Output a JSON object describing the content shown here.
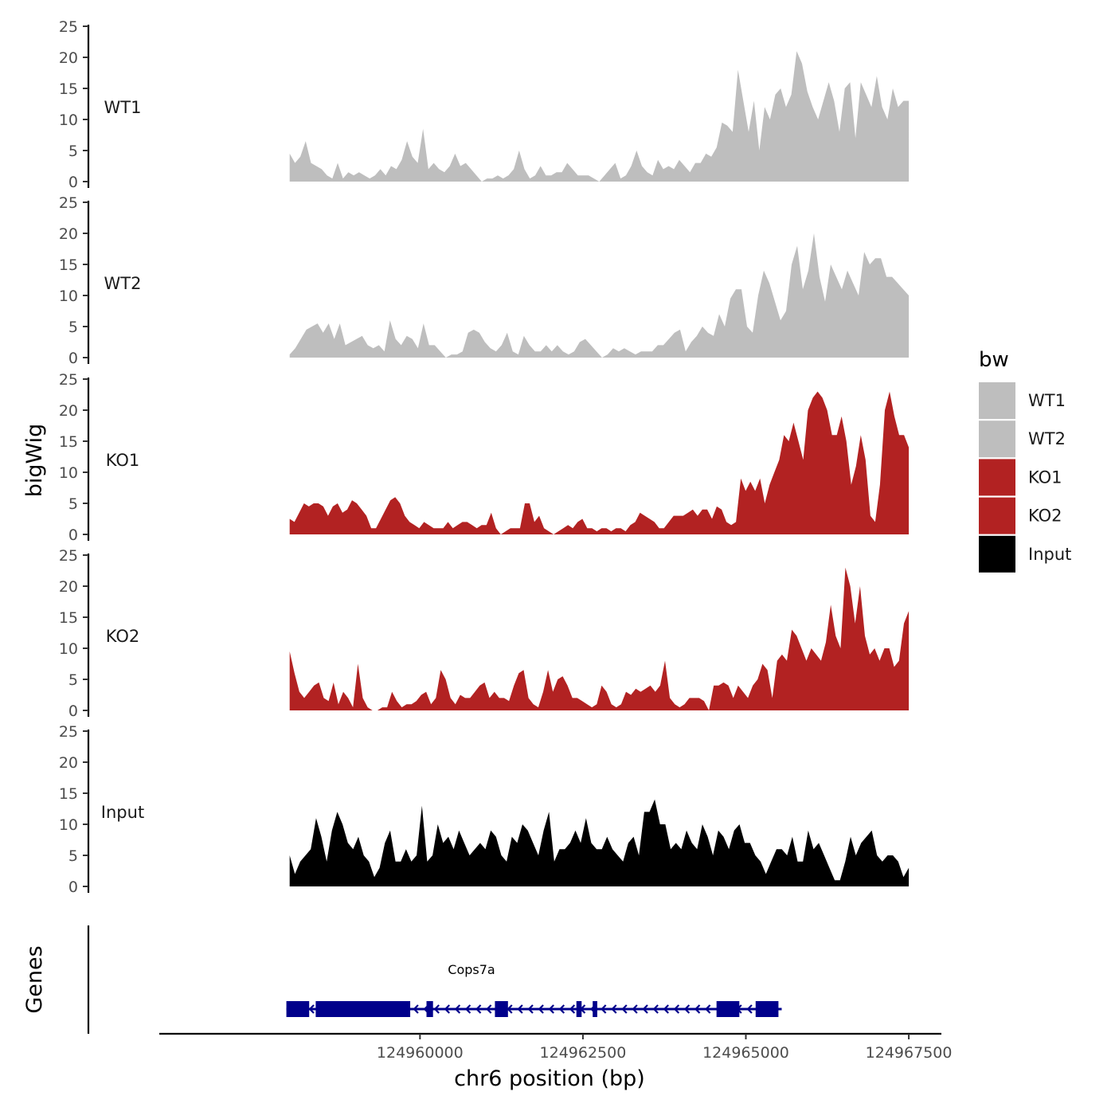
{
  "chart_data": {
    "type": "area",
    "ylabel": "bigWig",
    "xlabel": "chr6 position (bp)",
    "ylim": [
      0,
      25
    ],
    "y_ticks": [
      0,
      5,
      10,
      15,
      20,
      25
    ],
    "xlim": [
      124956000,
      124968000
    ],
    "x_ticks": [
      124960000,
      124962500,
      124965000,
      124967500
    ],
    "x_tick_labels": [
      "124960000",
      "124962500",
      "124965000",
      "124967500"
    ],
    "x_range": [
      124958000,
      124967500
    ],
    "legend": {
      "title": "bw",
      "position": "right",
      "entries": [
        {
          "label": "WT1",
          "color": "#bebebe"
        },
        {
          "label": "WT2",
          "color": "#bebebe"
        },
        {
          "label": "KO1",
          "color": "#b22222"
        },
        {
          "label": "KO2",
          "color": "#b22222"
        },
        {
          "label": "Input",
          "color": "#000000"
        }
      ]
    },
    "series": [
      {
        "name": "WT1",
        "color": "#bebebe",
        "values": [
          4.5,
          3,
          4,
          6.5,
          3,
          2.5,
          2,
          1,
          0.5,
          3,
          0.5,
          1.5,
          1,
          1.5,
          1,
          0.5,
          1,
          2,
          1,
          2.5,
          2,
          3.5,
          6.5,
          4,
          3,
          8.5,
          2,
          3,
          2,
          1.5,
          2.5,
          4.5,
          2.5,
          3,
          2,
          1,
          0,
          0.5,
          0.5,
          1,
          0.5,
          1,
          2,
          5,
          2,
          0.5,
          1,
          2.5,
          1,
          1,
          1.5,
          1.5,
          3,
          2,
          1,
          1,
          1,
          0.5,
          0,
          1,
          2,
          3,
          0.5,
          1,
          2.5,
          5,
          2.5,
          1.5,
          1,
          3.5,
          2,
          2.5,
          2,
          3.5,
          2.5,
          1.5,
          3,
          3,
          4.5,
          4,
          5.5,
          9.5,
          9,
          8,
          18,
          13,
          8,
          13,
          5,
          12,
          10,
          14,
          15,
          12,
          14,
          21,
          19,
          14.5,
          12,
          10,
          13,
          16,
          13,
          8,
          15,
          16,
          7,
          16,
          14,
          12,
          17,
          12,
          10,
          15,
          12,
          13,
          13
        ]
      },
      {
        "name": "WT2",
        "color": "#bebebe",
        "values": [
          0.5,
          1.5,
          3,
          4.5,
          5,
          5.5,
          4,
          5.5,
          3,
          5.5,
          2,
          2.5,
          3,
          3.5,
          2,
          1.5,
          2,
          1,
          6,
          3,
          2,
          3.5,
          3,
          1.5,
          5.5,
          2,
          2,
          1,
          0,
          0.5,
          0.5,
          1,
          4,
          4.5,
          4,
          2.5,
          1.5,
          1,
          2,
          4,
          1,
          0.5,
          3.5,
          2,
          1,
          1,
          2,
          1,
          2,
          1,
          0.5,
          1,
          2.5,
          3,
          2,
          1,
          0,
          0.5,
          1.5,
          1,
          1.5,
          1,
          0.5,
          1,
          1,
          1,
          2,
          2,
          3,
          4,
          4.5,
          1,
          2.5,
          3.5,
          5,
          4,
          3.5,
          7,
          5,
          9.5,
          11,
          11,
          5,
          4,
          10,
          14,
          12,
          9,
          6,
          7.5,
          15,
          18,
          11,
          14,
          20,
          13,
          9,
          15,
          13,
          11,
          14,
          12,
          10,
          17,
          15,
          16,
          16,
          13,
          13,
          12,
          11,
          10
        ]
      },
      {
        "name": "KO1",
        "color": "#b22222",
        "values": [
          2.5,
          2,
          3.5,
          5,
          4.5,
          5,
          5,
          4.5,
          3,
          4.5,
          5,
          3.5,
          4,
          5.5,
          5,
          4,
          3,
          1,
          1,
          2.5,
          4,
          5.5,
          6,
          5,
          3,
          2,
          1.5,
          1,
          2,
          1.5,
          1,
          1,
          1,
          2,
          1,
          1.5,
          2,
          2,
          1.5,
          1,
          1.5,
          1.5,
          3.5,
          1,
          0,
          0.5,
          1,
          1,
          1,
          5,
          5,
          2,
          3,
          1,
          0.5,
          0,
          0.5,
          1,
          1.5,
          1,
          2,
          2.5,
          1,
          1,
          0.5,
          1,
          1,
          0.5,
          1,
          1,
          0.5,
          1.5,
          2,
          3.5,
          3,
          2.5,
          2,
          1,
          1,
          2,
          3,
          3,
          3,
          3.5,
          4,
          3,
          4,
          4,
          2.5,
          4.5,
          4,
          2,
          1.5,
          2,
          9,
          7,
          8.5,
          7,
          9,
          5,
          8,
          10,
          12,
          16,
          15,
          18,
          15,
          12,
          20,
          22,
          23,
          22,
          20,
          16,
          16,
          19,
          15,
          8,
          11,
          16,
          12,
          3,
          2,
          8,
          20,
          23,
          19,
          16,
          16,
          14
        ]
      },
      {
        "name": "KO2",
        "color": "#b22222",
        "values": [
          9.5,
          6,
          3,
          2,
          3,
          4,
          4.5,
          2,
          1.5,
          4.5,
          1,
          3,
          2,
          0.5,
          7.5,
          2,
          0.5,
          0,
          0,
          0.5,
          0.5,
          3,
          1.5,
          0.5,
          1,
          1,
          1.5,
          2.5,
          3,
          1,
          2,
          6.5,
          5,
          2,
          1,
          2.5,
          2,
          2,
          3,
          4,
          4.5,
          2,
          3,
          2,
          2,
          1.5,
          4,
          6,
          6.5,
          2,
          1,
          0.5,
          3,
          6.5,
          3,
          5,
          5.5,
          4,
          2,
          2,
          1.5,
          1,
          0.5,
          1,
          4,
          3,
          1,
          0.5,
          1,
          3,
          2.5,
          3.5,
          3,
          3.5,
          4,
          3,
          4,
          8,
          2,
          1,
          0.5,
          1,
          2,
          2,
          2,
          1.5,
          0,
          4,
          4,
          4.5,
          4,
          2,
          4,
          3,
          2,
          4,
          5,
          7.5,
          6.5,
          2,
          8,
          9,
          8,
          13,
          12,
          10,
          8,
          10,
          9,
          8,
          11,
          17,
          12,
          10,
          23,
          20,
          14,
          20,
          12,
          9,
          10,
          8,
          10,
          10,
          7,
          8,
          14,
          16
        ]
      },
      {
        "name": "Input",
        "color": "#000000",
        "values": [
          5,
          2,
          4,
          5,
          6,
          11,
          8,
          4,
          9,
          12,
          10,
          7,
          6,
          8,
          5,
          4,
          1.5,
          3,
          7,
          9,
          4,
          4,
          6,
          4,
          5,
          13,
          4,
          5,
          10,
          7,
          8,
          6,
          9,
          7,
          5,
          6,
          7,
          6,
          9,
          8,
          5,
          4,
          8,
          7,
          10,
          9,
          7,
          5,
          9,
          12,
          4,
          6,
          6,
          7,
          9,
          7,
          11,
          7,
          6,
          6,
          8,
          6,
          5,
          4,
          7,
          8,
          5,
          12,
          12,
          14,
          10,
          10,
          6,
          7,
          6,
          9,
          7,
          6,
          10,
          8,
          5,
          9,
          8,
          6,
          9,
          10,
          7,
          7,
          5,
          4,
          2,
          4,
          6,
          6,
          5,
          8,
          4,
          4,
          9,
          6,
          7,
          5,
          3,
          1,
          1,
          4,
          8,
          5,
          7,
          8,
          9,
          5,
          4,
          5,
          5,
          4,
          1.5,
          3
        ]
      }
    ],
    "gene_track": {
      "label": "Genes",
      "gene_name": "Cops7a",
      "strand": "-",
      "start": 124957950,
      "end": 124965550,
      "exons": [
        [
          124957950,
          124958300
        ],
        [
          124958400,
          124959850
        ],
        [
          124960100,
          124960200
        ],
        [
          124961150,
          124961350
        ],
        [
          124962400,
          124962480
        ],
        [
          124962650,
          124962720
        ],
        [
          124964550,
          124964900
        ],
        [
          124965150,
          124965500
        ]
      ],
      "color": "#00008b"
    }
  }
}
